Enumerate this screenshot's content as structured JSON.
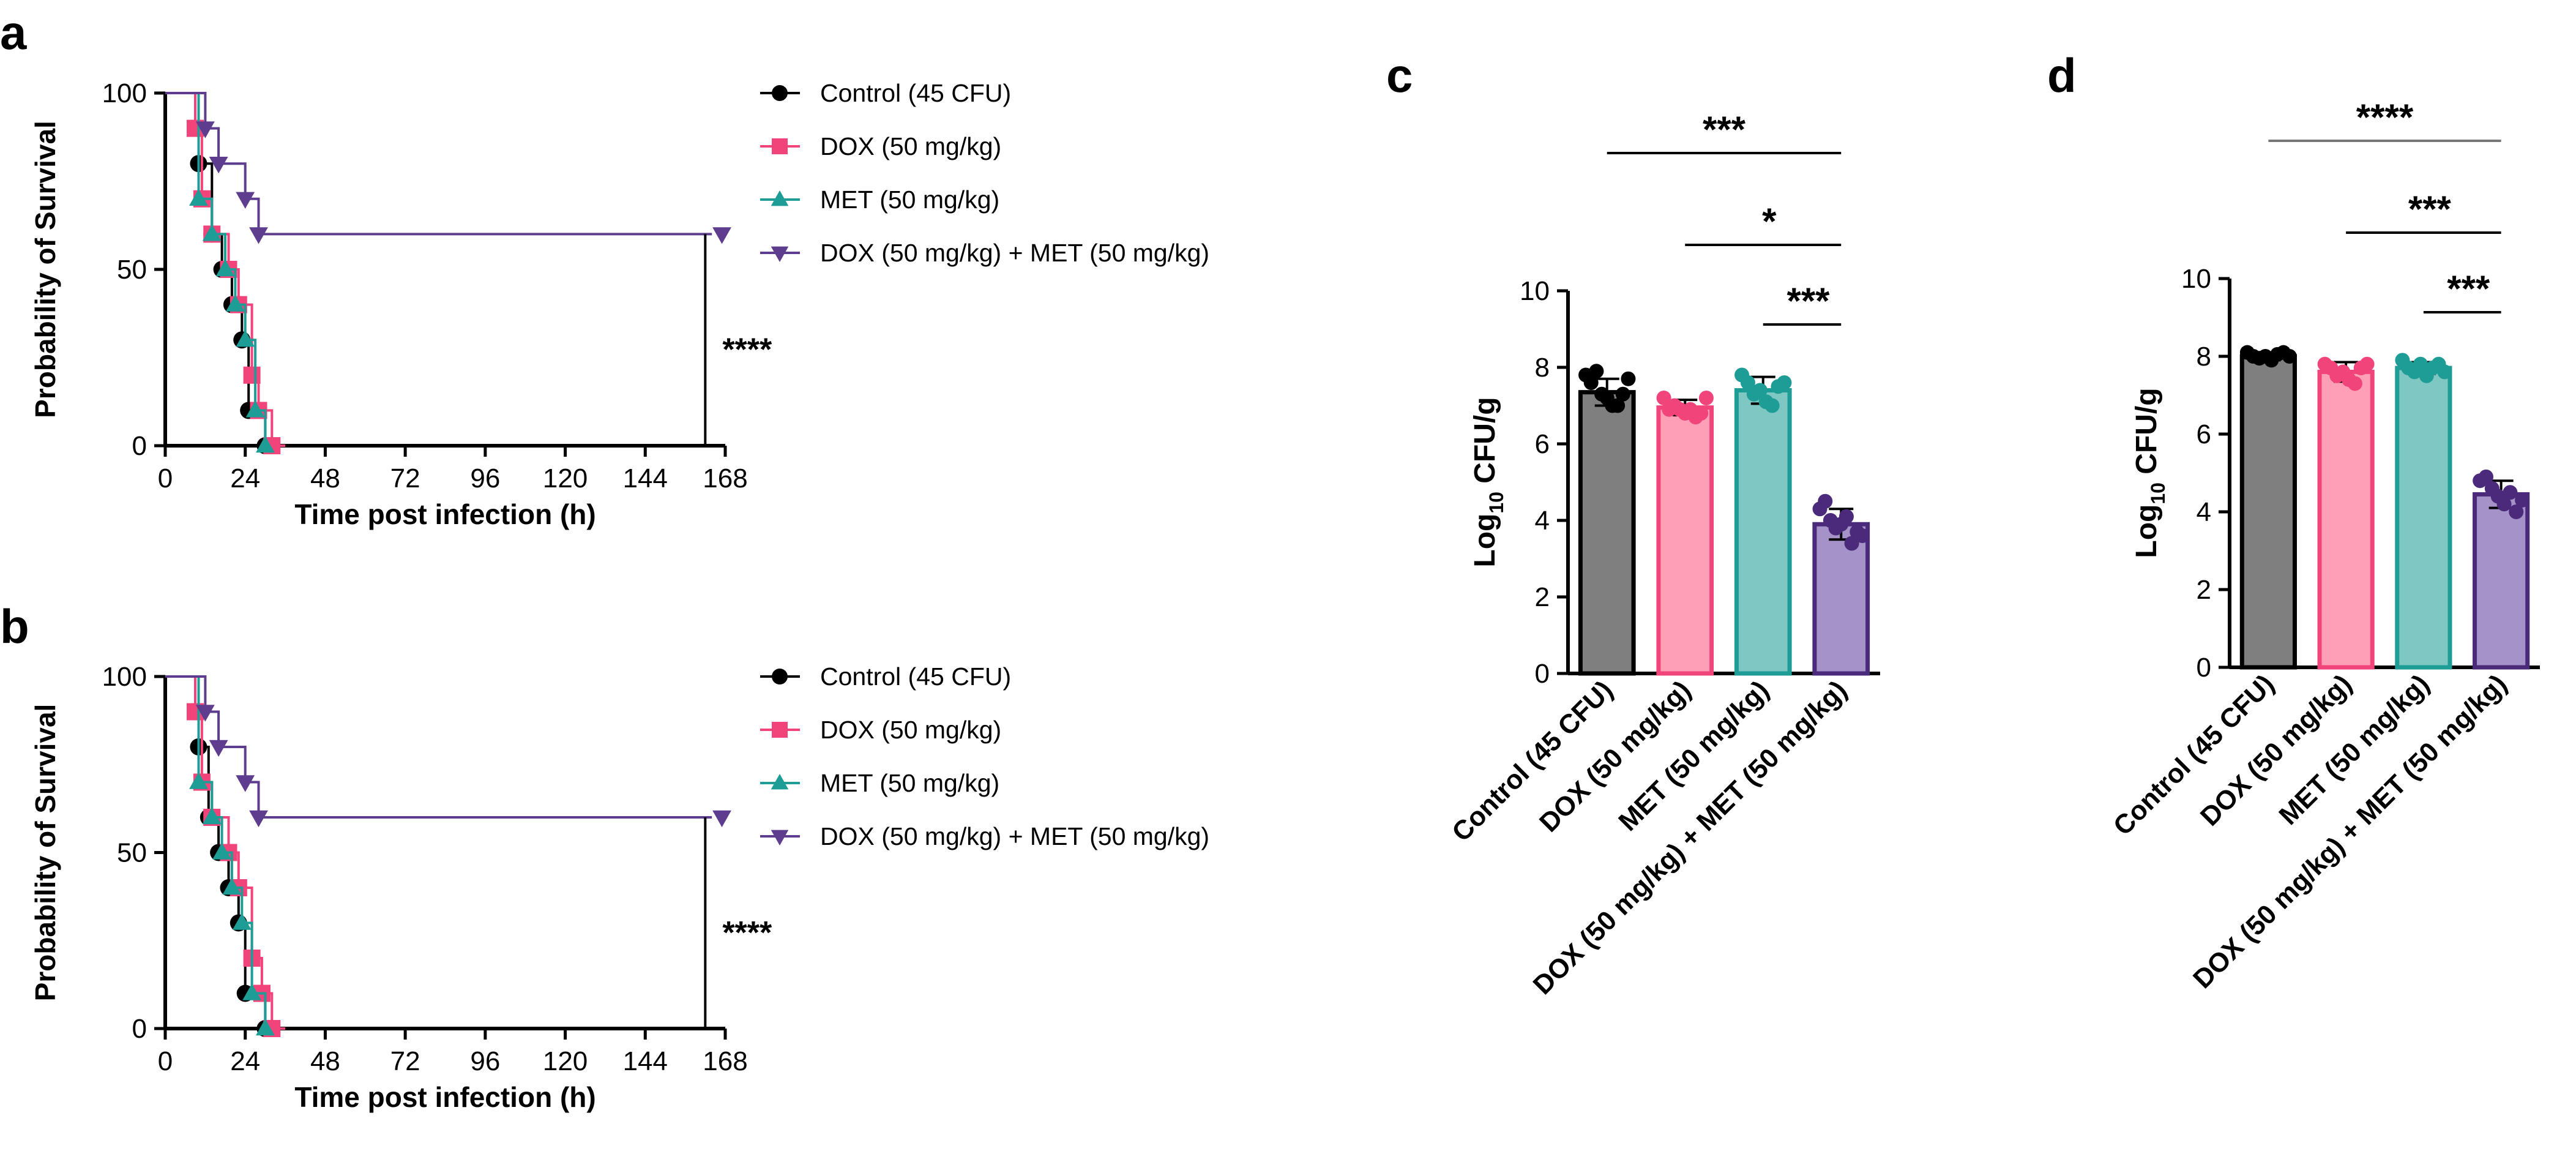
{
  "colors": {
    "control": "#000000",
    "dox": "#F0447A",
    "met": "#1E9C96",
    "combo": "#5E3C8E",
    "bar_control": "#7F7F7F",
    "bar_dox": "#FF9FB6",
    "bar_met": "#7FC7C3",
    "bar_combo": "#A592C8",
    "bar_edge_control": "#000000",
    "bar_edge_dox": "#F0447A",
    "bar_edge_met": "#1E9C96",
    "bar_edge_combo": "#4B2A7B"
  },
  "chart_data": [
    {
      "panel": "a",
      "type": "line",
      "step": true,
      "xlabel": "Time post infection (h)",
      "ylabel": "Probability of Survival",
      "xlim": [
        0,
        168
      ],
      "ylim": [
        0,
        100
      ],
      "xticks": [
        0,
        24,
        48,
        72,
        96,
        120,
        144,
        168
      ],
      "yticks": [
        0,
        50,
        100
      ],
      "legend": "right",
      "significance": "****",
      "series": [
        {
          "name": "Control (45 CFU)",
          "key": "control",
          "marker": "circle",
          "points": [
            [
              0,
              100
            ],
            [
              10,
              100
            ],
            [
              10,
              80
            ],
            [
              14,
              80
            ],
            [
              14,
              60
            ],
            [
              17,
              60
            ],
            [
              17,
              50
            ],
            [
              20,
              50
            ],
            [
              20,
              40
            ],
            [
              23,
              40
            ],
            [
              23,
              30
            ],
            [
              25,
              30
            ],
            [
              25,
              10
            ],
            [
              30,
              10
            ],
            [
              30,
              0
            ]
          ]
        },
        {
          "name": "DOX (50 mg/kg)",
          "key": "dox",
          "marker": "square",
          "points": [
            [
              0,
              100
            ],
            [
              9,
              100
            ],
            [
              9,
              90
            ],
            [
              11,
              90
            ],
            [
              11,
              70
            ],
            [
              14,
              70
            ],
            [
              14,
              60
            ],
            [
              19,
              60
            ],
            [
              19,
              50
            ],
            [
              22,
              50
            ],
            [
              22,
              40
            ],
            [
              26,
              40
            ],
            [
              26,
              20
            ],
            [
              28,
              20
            ],
            [
              28,
              10
            ],
            [
              32,
              10
            ],
            [
              32,
              0
            ],
            [
              36,
              0
            ]
          ]
        },
        {
          "name": "MET (50 mg/kg)",
          "key": "met",
          "marker": "triangle-up",
          "points": [
            [
              0,
              100
            ],
            [
              10,
              100
            ],
            [
              10,
              70
            ],
            [
              14,
              70
            ],
            [
              14,
              60
            ],
            [
              18,
              60
            ],
            [
              18,
              50
            ],
            [
              21,
              50
            ],
            [
              21,
              40
            ],
            [
              24,
              40
            ],
            [
              24,
              30
            ],
            [
              27,
              30
            ],
            [
              27,
              10
            ],
            [
              30,
              10
            ],
            [
              30,
              0
            ]
          ]
        },
        {
          "name": "DOX (50 mg/kg) + MET (50 mg/kg)",
          "key": "combo",
          "marker": "triangle-down",
          "points": [
            [
              0,
              100
            ],
            [
              12,
              100
            ],
            [
              12,
              90
            ],
            [
              16,
              90
            ],
            [
              16,
              80
            ],
            [
              24,
              80
            ],
            [
              24,
              70
            ],
            [
              28,
              70
            ],
            [
              28,
              60
            ],
            [
              164,
              60
            ]
          ]
        }
      ]
    },
    {
      "panel": "b",
      "type": "line",
      "step": true,
      "xlabel": "Time post infection (h)",
      "ylabel": "Probability of Survival",
      "xlim": [
        0,
        168
      ],
      "ylim": [
        0,
        100
      ],
      "xticks": [
        0,
        24,
        48,
        72,
        96,
        120,
        144,
        168
      ],
      "yticks": [
        0,
        50,
        100
      ],
      "legend": "right",
      "significance": "****",
      "series": [
        {
          "name": "Control (45 CFU)",
          "key": "control",
          "marker": "circle",
          "points": [
            [
              0,
              100
            ],
            [
              10,
              100
            ],
            [
              10,
              80
            ],
            [
              13,
              80
            ],
            [
              13,
              60
            ],
            [
              16,
              60
            ],
            [
              16,
              50
            ],
            [
              19,
              50
            ],
            [
              19,
              40
            ],
            [
              22,
              40
            ],
            [
              22,
              30
            ],
            [
              24,
              30
            ],
            [
              24,
              10
            ],
            [
              30,
              10
            ],
            [
              30,
              0
            ]
          ]
        },
        {
          "name": "DOX (50 mg/kg)",
          "key": "dox",
          "marker": "square",
          "points": [
            [
              0,
              100
            ],
            [
              9,
              100
            ],
            [
              9,
              90
            ],
            [
              11,
              90
            ],
            [
              11,
              70
            ],
            [
              14,
              70
            ],
            [
              14,
              60
            ],
            [
              19,
              60
            ],
            [
              19,
              50
            ],
            [
              22,
              50
            ],
            [
              22,
              40
            ],
            [
              26,
              40
            ],
            [
              26,
              20
            ],
            [
              29,
              20
            ],
            [
              29,
              10
            ],
            [
              32,
              10
            ],
            [
              32,
              0
            ],
            [
              36,
              0
            ]
          ]
        },
        {
          "name": "MET (50 mg/kg)",
          "key": "met",
          "marker": "triangle-up",
          "points": [
            [
              0,
              100
            ],
            [
              10,
              100
            ],
            [
              10,
              70
            ],
            [
              14,
              70
            ],
            [
              14,
              60
            ],
            [
              17,
              60
            ],
            [
              17,
              50
            ],
            [
              20,
              50
            ],
            [
              20,
              40
            ],
            [
              23,
              40
            ],
            [
              23,
              30
            ],
            [
              26,
              30
            ],
            [
              26,
              10
            ],
            [
              30,
              10
            ],
            [
              30,
              0
            ]
          ]
        },
        {
          "name": "DOX (50 mg/kg) + MET (50 mg/kg)",
          "key": "combo",
          "marker": "triangle-down",
          "points": [
            [
              0,
              100
            ],
            [
              12,
              100
            ],
            [
              12,
              90
            ],
            [
              16,
              90
            ],
            [
              16,
              80
            ],
            [
              24,
              80
            ],
            [
              24,
              70
            ],
            [
              28,
              70
            ],
            [
              28,
              60
            ],
            [
              164,
              60
            ]
          ]
        }
      ]
    },
    {
      "panel": "c",
      "type": "bar",
      "ylabel_main": "Log",
      "ylabel_sub": "10",
      "ylabel_tail": " CFU/g",
      "ylim": [
        0,
        10
      ],
      "yticks": [
        0,
        2,
        4,
        6,
        8,
        10
      ],
      "categories": [
        "Control (45 CFU)",
        "DOX (50 mg/kg)",
        "MET (50 mg/kg)",
        "DOX (50 mg/kg) + MET (50 mg/kg)"
      ],
      "keys": [
        "control",
        "dox",
        "met",
        "combo"
      ],
      "values": [
        7.35,
        6.95,
        7.4,
        3.9
      ],
      "errors": [
        0.35,
        0.2,
        0.35,
        0.4
      ],
      "points": [
        [
          7.8,
          7.6,
          7.9,
          7.3,
          7.2,
          7.0,
          7.0,
          7.3,
          7.7
        ],
        [
          7.2,
          6.9,
          7.0,
          6.9,
          6.8,
          6.9,
          6.7,
          6.8,
          7.2
        ],
        [
          7.8,
          7.6,
          7.3,
          7.4,
          7.1,
          7.0,
          7.5,
          7.6
        ],
        [
          4.3,
          4.5,
          4.0,
          3.8,
          3.9,
          4.1,
          3.4,
          3.7,
          3.6
        ]
      ],
      "comparisons": [
        {
          "from": 0,
          "to": 3,
          "label": "***"
        },
        {
          "from": 1,
          "to": 3,
          "label": "*"
        },
        {
          "from": 2,
          "to": 3,
          "label": "***"
        }
      ]
    },
    {
      "panel": "d",
      "type": "bar",
      "ylabel_main": "Log",
      "ylabel_sub": "10",
      "ylabel_tail": " CFU/g",
      "ylim": [
        0,
        10
      ],
      "yticks": [
        0,
        2,
        4,
        6,
        8,
        10
      ],
      "categories": [
        "Control (45 CFU)",
        "DOX (50 mg/kg)",
        "MET (50 mg/kg)",
        "DOX (50 mg/kg) + MET (50 mg/kg)"
      ],
      "keys": [
        "control",
        "dox",
        "met",
        "combo"
      ],
      "values": [
        8.0,
        7.6,
        7.7,
        4.45
      ],
      "errors": [
        0.1,
        0.25,
        0.15,
        0.35
      ],
      "points": [
        [
          8.1,
          8.0,
          7.95,
          8.0,
          7.9,
          8.05,
          8.1,
          8.0
        ],
        [
          7.8,
          7.7,
          7.5,
          7.6,
          7.4,
          7.3,
          7.7,
          7.8
        ],
        [
          7.9,
          7.7,
          7.6,
          7.8,
          7.5,
          7.7,
          7.8,
          7.6
        ],
        [
          4.8,
          4.9,
          4.6,
          4.4,
          4.2,
          4.5,
          4.0,
          4.3
        ]
      ],
      "comparisons": [
        {
          "from": 0,
          "to": 3,
          "label": "****"
        },
        {
          "from": 1,
          "to": 3,
          "label": "***"
        },
        {
          "from": 2,
          "to": 3,
          "label": "***"
        }
      ]
    }
  ]
}
